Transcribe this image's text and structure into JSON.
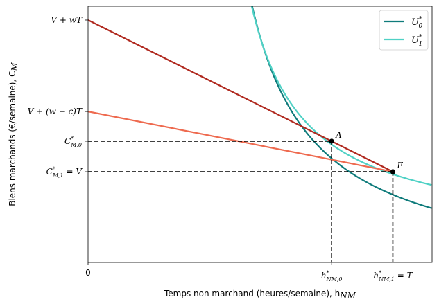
{
  "chart_data": {
    "type": "line",
    "xlabel": "Temps non marchand (heures/semaine), h",
    "xlabel_sub": "NM",
    "ylabel": "Biens marchands (€/semaine), C",
    "ylabel_sub": "M",
    "xlim": [
      0,
      100
    ],
    "ylim": [
      0,
      100
    ],
    "grid": false,
    "legend_position": "top-right",
    "x_ticks": [
      {
        "value": 0,
        "label": "0"
      },
      {
        "value": 70.8,
        "label": "h*NM,0"
      },
      {
        "value": 88.6,
        "label": "h*NM,1 = T"
      }
    ],
    "y_ticks": [
      {
        "value": 94.6,
        "label": "V + wT"
      },
      {
        "value": 58.9,
        "label": "V + (w − c)T"
      },
      {
        "value": 47.3,
        "label": "C*M,0"
      },
      {
        "value": 35.4,
        "label": "C*M,1 = V"
      }
    ],
    "series": [
      {
        "name": "U*0",
        "role": "indifference",
        "color": "#0f7b7b",
        "k": 1950,
        "x0": 29.4,
        "y0": -6.5
      },
      {
        "name": "U*1",
        "role": "indifference",
        "color": "#4fd1c5",
        "k": 1455,
        "x0": 31.6,
        "y0": 8.9
      },
      {
        "role": "budget",
        "color": "#b0291f",
        "points": [
          [
            0,
            94.6
          ],
          [
            88.6,
            35.4
          ]
        ]
      },
      {
        "role": "budget",
        "color": "#ee6a4f",
        "points": [
          [
            0,
            58.9
          ],
          [
            88.6,
            35.4
          ]
        ]
      }
    ],
    "points": [
      {
        "label": "A",
        "x": 70.8,
        "y": 47.3
      },
      {
        "label": "E",
        "x": 88.6,
        "y": 35.4
      }
    ],
    "legend": [
      {
        "label": "U",
        "sup": "*",
        "sub": "0",
        "color": "#0f7b7b"
      },
      {
        "label": "U",
        "sup": "*",
        "sub": "1",
        "color": "#4fd1c5"
      }
    ]
  }
}
